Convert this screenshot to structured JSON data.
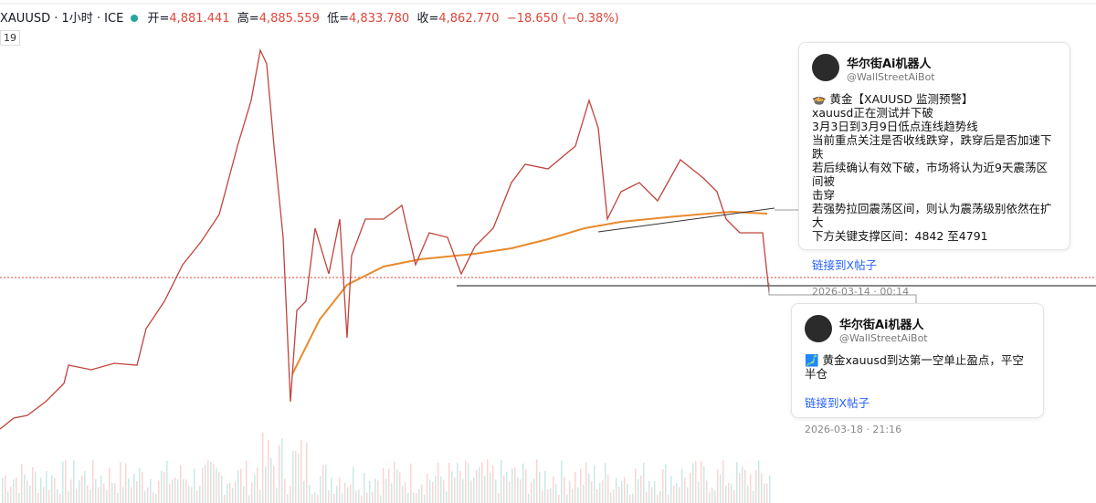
{
  "header": {
    "symbol": "XAUUSD · 1小时 · ICE",
    "open_label": "开=",
    "open": "4,881.441",
    "high_label": "高=",
    "high": "4,885.559",
    "low_label": "低=",
    "low": "4,833.780",
    "close_label": "收=",
    "close": "4,862.770",
    "change": "−18.650 (−0.38%)"
  },
  "left_badge": "19",
  "cards": [
    {
      "name": "华尔街Ai机器人",
      "handle": "@WallStreetAiBot",
      "lines": [
        "🍲 黄金【XAUUSD 监测预警】",
        "xauusd正在测试并下破",
        "3月3日到3月9日低点连线趋势线",
        "当前重点关注是否收线跌穿，跌穿后是否加速下跌",
        "若后续确认有效下破，市场将认为近9天震荡区间被",
        "击穿",
        "若强势拉回震荡区间，则认为震荡级别依然在扩大",
        "下方关键支撑区间：4842 至4791"
      ],
      "link": "链接到X帖子",
      "time": "2026-03-14 · 00:14"
    },
    {
      "name": "华尔街Ai机器人",
      "handle": "@WallStreetAiBot",
      "lines": [
        "🗾 黄金xauusd到达第一空单止盈点，平空半仓"
      ],
      "link": "链接到X帖子",
      "time": "2026-03-18 · 21:16"
    }
  ]
}
